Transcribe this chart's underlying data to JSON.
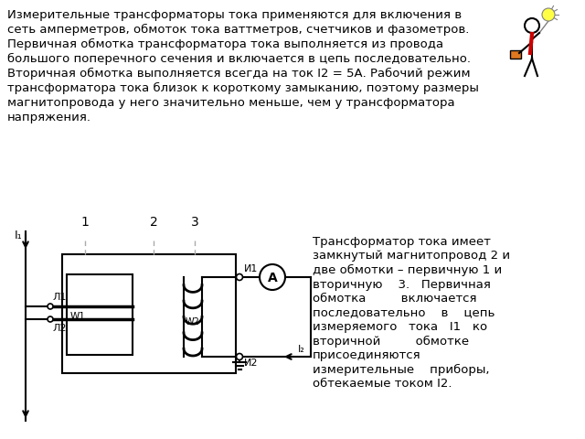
{
  "bg_color": "#ffffff",
  "top_text_lines": [
    "Измерительные трансформаторы тока применяются для включения в",
    "сеть амперметров, обмоток тока ваттметров, счетчиков и фазометров.",
    "Первичная обмотка трансформатора тока выполняется из провода",
    "большого поперечного сечения и включается в цепь последовательно.",
    "Вторичная обмотка выполняется всегда на ток I2 = 5А. Рабочий режим",
    "трансформатора тока близок к короткому замыканию, поэтому размеры",
    "магнитопровода у него значительно меньше, чем у трансформатора",
    "напряжения."
  ],
  "right_text_lines": [
    "Трансформатор тока имеет",
    "замкнутый магнитопровод 2 и",
    "две обмотки – первичную 1 и",
    "вторичную    3.   Первичная",
    "обмотка         включается",
    "последовательно    в    цепь",
    "измеряемого   тока   I1   ко",
    "вторичной         обмотке",
    "присоединяются",
    "измерительные    приборы,",
    "обтекаемые током I2."
  ],
  "text_fontsize": 9.5,
  "line_color": "#000000",
  "gray_color": "#aaaaaa"
}
